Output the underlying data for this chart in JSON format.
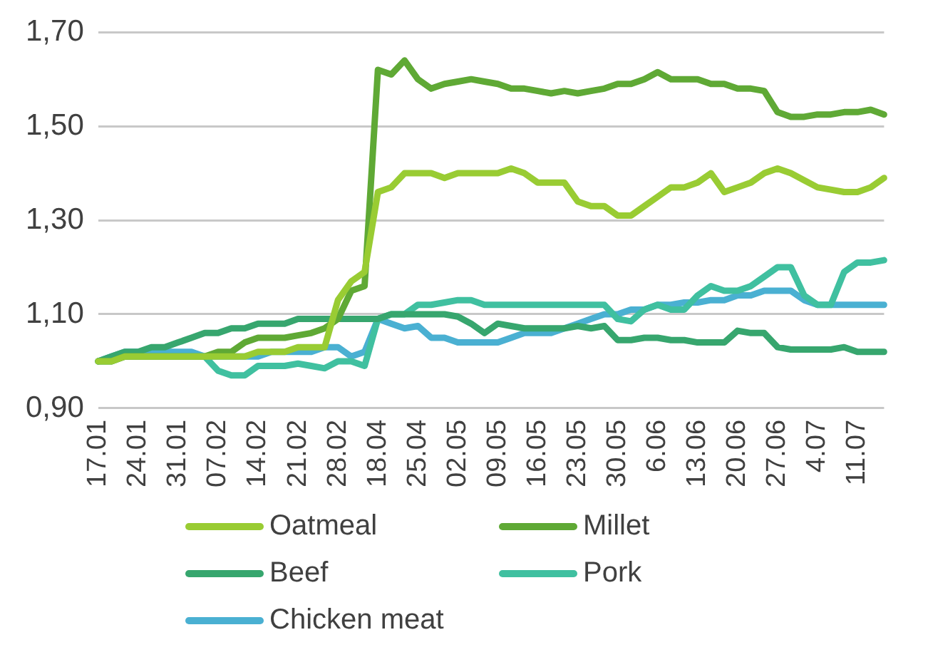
{
  "chart_data": {
    "type": "line",
    "categories": [
      "17.01",
      null,
      null,
      "24.01",
      null,
      null,
      "31.01",
      null,
      null,
      "07.02",
      null,
      null,
      "14.02",
      null,
      null,
      "21.02",
      null,
      null,
      "28.02",
      null,
      null,
      "18.04",
      null,
      null,
      "25.04",
      null,
      null,
      "02.05",
      null,
      null,
      "09.05",
      null,
      null,
      "16.05",
      null,
      null,
      "23.05",
      null,
      null,
      "30.05",
      null,
      null,
      "6.06",
      null,
      null,
      "13.06",
      null,
      null,
      "20.06",
      null,
      null,
      "27.06",
      null,
      null,
      "4.07",
      null,
      null,
      "11.07",
      null,
      null
    ],
    "ylim": [
      0.9,
      1.7
    ],
    "yticks": [
      {
        "value": 0.9,
        "label": "0,90"
      },
      {
        "value": 1.1,
        "label": "1,10"
      },
      {
        "value": 1.3,
        "label": "1,30"
      },
      {
        "value": 1.5,
        "label": "1,50"
      },
      {
        "value": 1.7,
        "label": "1,70"
      }
    ],
    "grid": "y",
    "legend": "bottom",
    "marker": "none",
    "line_style": "solid",
    "series": [
      {
        "name": "Oatmeal",
        "color": "#99cc33",
        "values": [
          1.0,
          1.0,
          1.01,
          1.01,
          1.01,
          1.01,
          1.01,
          1.01,
          1.01,
          1.01,
          1.01,
          1.01,
          1.02,
          1.02,
          1.02,
          1.03,
          1.03,
          1.03,
          1.13,
          1.17,
          1.19,
          1.36,
          1.37,
          1.4,
          1.4,
          1.4,
          1.39,
          1.4,
          1.4,
          1.4,
          1.4,
          1.41,
          1.4,
          1.38,
          1.38,
          1.38,
          1.34,
          1.33,
          1.33,
          1.31,
          1.31,
          1.33,
          1.35,
          1.37,
          1.37,
          1.38,
          1.4,
          1.36,
          1.37,
          1.38,
          1.4,
          1.41,
          1.4,
          1.385,
          1.37,
          1.365,
          1.36,
          1.36,
          1.37,
          1.39
        ]
      },
      {
        "name": "Millet",
        "color": "#5fa935",
        "values": [
          1.0,
          1.0,
          1.01,
          1.01,
          1.01,
          1.01,
          1.01,
          1.01,
          1.01,
          1.02,
          1.02,
          1.04,
          1.05,
          1.05,
          1.05,
          1.055,
          1.06,
          1.07,
          1.09,
          1.15,
          1.16,
          1.62,
          1.61,
          1.64,
          1.6,
          1.58,
          1.59,
          1.595,
          1.6,
          1.595,
          1.59,
          1.58,
          1.58,
          1.575,
          1.57,
          1.575,
          1.57,
          1.575,
          1.58,
          1.59,
          1.59,
          1.6,
          1.615,
          1.6,
          1.6,
          1.6,
          1.59,
          1.59,
          1.58,
          1.58,
          1.575,
          1.53,
          1.52,
          1.52,
          1.525,
          1.525,
          1.53,
          1.53,
          1.535,
          1.525
        ]
      },
      {
        "name": "Beef",
        "color": "#37a66e",
        "values": [
          1.0,
          1.01,
          1.02,
          1.02,
          1.03,
          1.03,
          1.04,
          1.05,
          1.06,
          1.06,
          1.07,
          1.07,
          1.08,
          1.08,
          1.08,
          1.09,
          1.09,
          1.09,
          1.09,
          1.09,
          1.09,
          1.09,
          1.1,
          1.1,
          1.1,
          1.1,
          1.1,
          1.095,
          1.08,
          1.06,
          1.08,
          1.075,
          1.07,
          1.07,
          1.07,
          1.07,
          1.075,
          1.07,
          1.075,
          1.045,
          1.045,
          1.05,
          1.05,
          1.045,
          1.045,
          1.04,
          1.04,
          1.04,
          1.065,
          1.06,
          1.06,
          1.03,
          1.025,
          1.025,
          1.025,
          1.025,
          1.03,
          1.02,
          1.02,
          1.02
        ]
      },
      {
        "name": "Pork",
        "color": "#40c0a0",
        "values": [
          1.0,
          1.0,
          1.01,
          1.01,
          1.01,
          1.01,
          1.01,
          1.01,
          1.01,
          0.98,
          0.97,
          0.97,
          0.99,
          0.99,
          0.99,
          0.995,
          0.99,
          0.985,
          1.0,
          1.0,
          0.99,
          1.09,
          1.1,
          1.1,
          1.12,
          1.12,
          1.125,
          1.13,
          1.13,
          1.12,
          1.12,
          1.12,
          1.12,
          1.12,
          1.12,
          1.12,
          1.12,
          1.12,
          1.12,
          1.09,
          1.085,
          1.11,
          1.12,
          1.11,
          1.11,
          1.14,
          1.16,
          1.15,
          1.15,
          1.16,
          1.18,
          1.2,
          1.2,
          1.14,
          1.12,
          1.12,
          1.19,
          1.21,
          1.21,
          1.215
        ]
      },
      {
        "name": "Chicken meat",
        "color": "#4ab0d2",
        "values": [
          1.0,
          1.01,
          1.02,
          1.02,
          1.02,
          1.02,
          1.02,
          1.02,
          1.01,
          1.01,
          1.01,
          1.01,
          1.01,
          1.02,
          1.02,
          1.02,
          1.02,
          1.03,
          1.03,
          1.01,
          1.02,
          1.09,
          1.08,
          1.07,
          1.075,
          1.05,
          1.05,
          1.04,
          1.04,
          1.04,
          1.04,
          1.05,
          1.06,
          1.06,
          1.06,
          1.07,
          1.08,
          1.09,
          1.1,
          1.1,
          1.11,
          1.11,
          1.12,
          1.12,
          1.125,
          1.125,
          1.13,
          1.13,
          1.14,
          1.14,
          1.15,
          1.15,
          1.15,
          1.13,
          1.12,
          1.12,
          1.12,
          1.12,
          1.12,
          1.12
        ]
      }
    ]
  }
}
